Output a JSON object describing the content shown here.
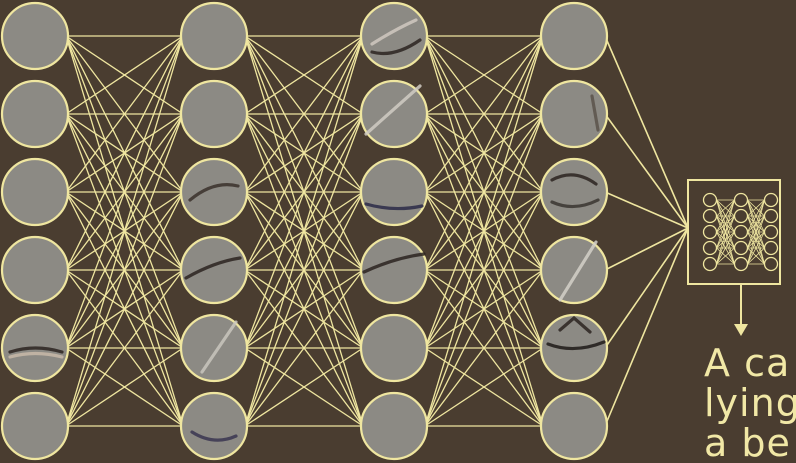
{
  "diagram": {
    "layers": [
      {
        "name": "layer-1",
        "neuron_count": 6
      },
      {
        "name": "layer-2",
        "neuron_count": 6
      },
      {
        "name": "layer-3",
        "neuron_count": 6
      },
      {
        "name": "layer-4",
        "neuron_count": 6
      }
    ],
    "colors": {
      "background": "#4a3d30",
      "line": "#efe6a0",
      "neuron_fill": "#8c8a84"
    },
    "output_box_icon": "mini-neural-network-icon",
    "caption": {
      "lines": [
        "A ca",
        "lying",
        "a be"
      ]
    }
  }
}
